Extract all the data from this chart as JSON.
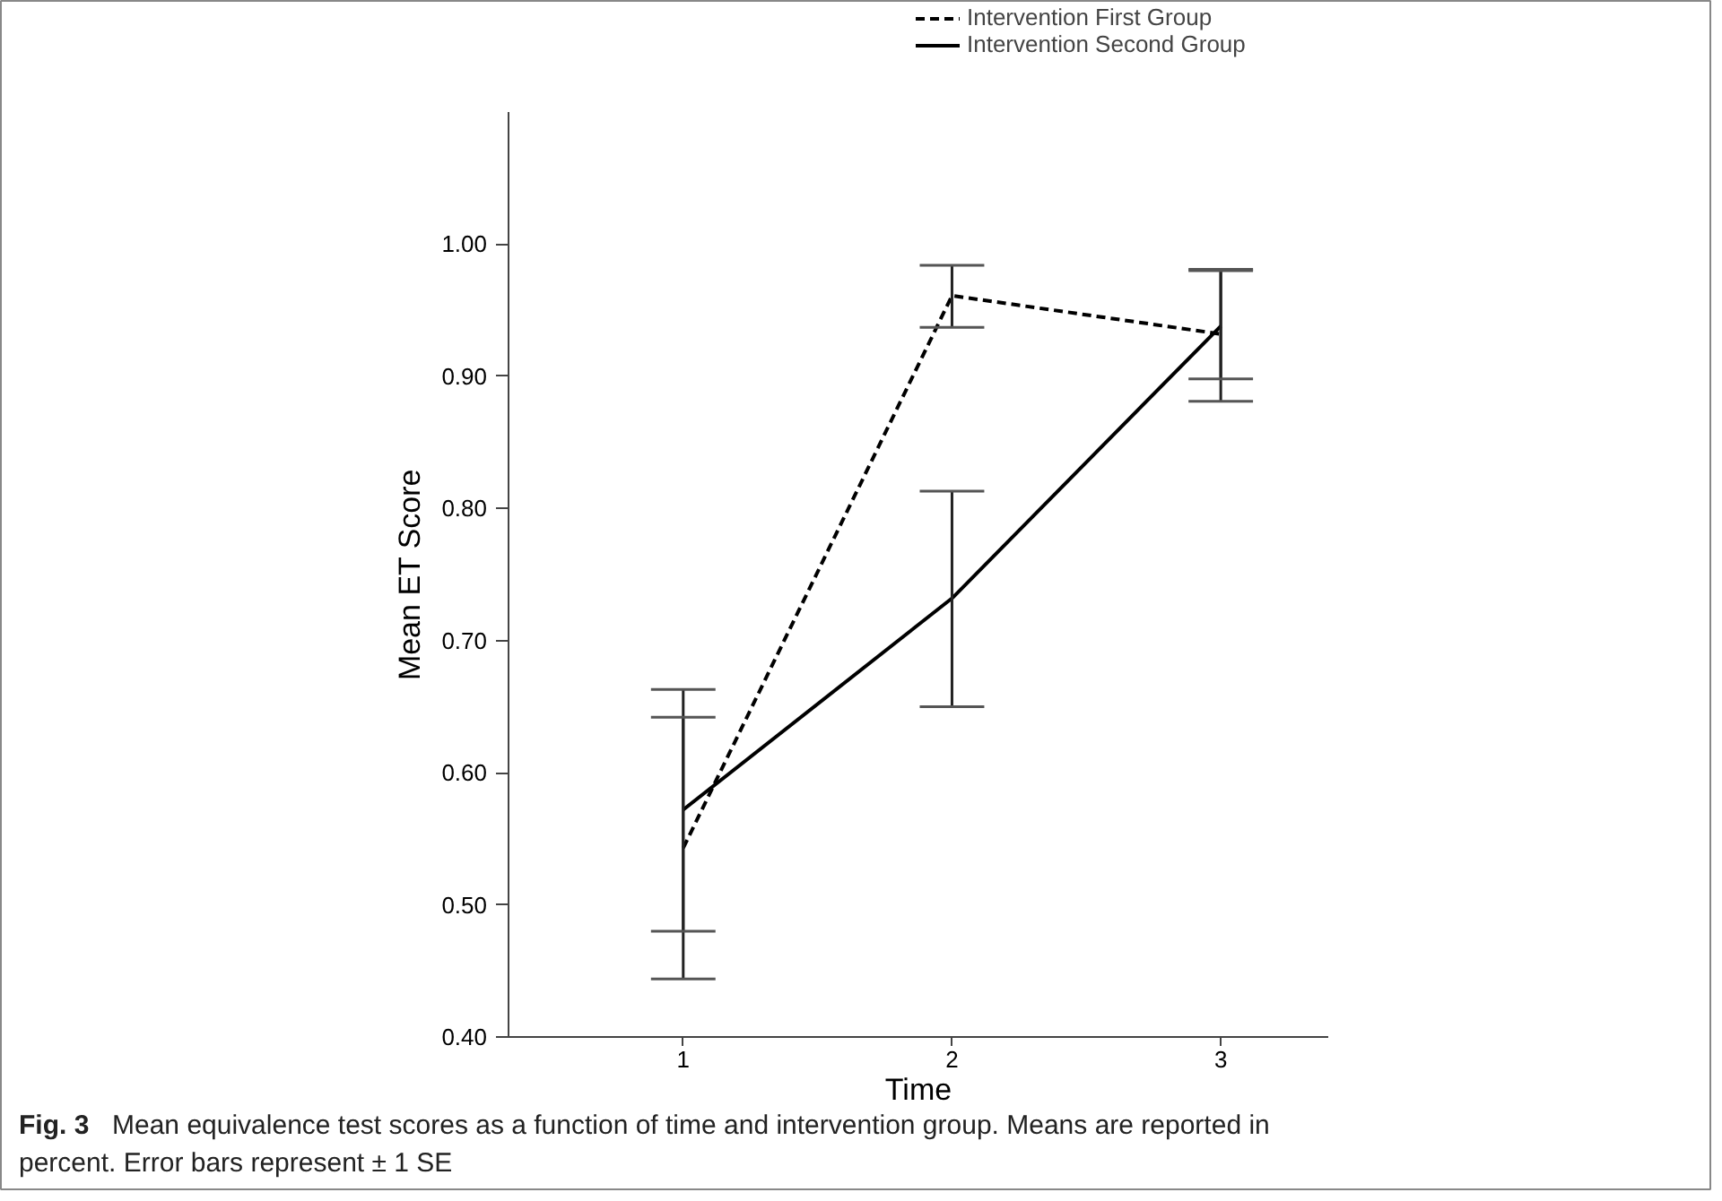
{
  "chart_data": {
    "type": "line",
    "xlabel": "Time",
    "ylabel": "Mean ET Score",
    "x": [
      1,
      2,
      3
    ],
    "xlim": [
      0.35,
      3.4
    ],
    "xticks": [
      1,
      2,
      3
    ],
    "ylim": [
      0.4,
      1.1
    ],
    "yticks": [
      {
        "value": 0.4,
        "label": "0.40"
      },
      {
        "value": 0.5,
        "label": "0.50"
      },
      {
        "value": 0.6,
        "label": "0.60"
      },
      {
        "value": 0.7,
        "label": "0.70"
      },
      {
        "value": 0.8,
        "label": "0.80"
      },
      {
        "value": 0.9,
        "label": "0.90"
      },
      {
        "value": 1.0,
        "label": "1.00"
      }
    ],
    "series": [
      {
        "name": "Intervention First Group",
        "color": "#000000",
        "line_style": "dashed",
        "values": [
          0.543,
          0.961,
          0.932
        ],
        "errors": [
          [
            0.444,
            0.663
          ],
          [
            0.937,
            0.984
          ],
          [
            0.881,
            0.981
          ]
        ]
      },
      {
        "name": "Intervention Second Group",
        "color": "#000000",
        "line_style": "solid",
        "values": [
          0.572,
          0.732,
          0.938
        ],
        "errors": [
          [
            0.48,
            0.642
          ],
          [
            0.65,
            0.813
          ],
          [
            0.898,
            0.98
          ]
        ]
      }
    ],
    "grid": false,
    "legend": "top right",
    "marker": "none",
    "annotations": [
      "Fig. 3",
      "Mean equivalence test scores as a function of time and intervention group. Means are reported in percent. Error bars represent ± 1 SE"
    ]
  }
}
